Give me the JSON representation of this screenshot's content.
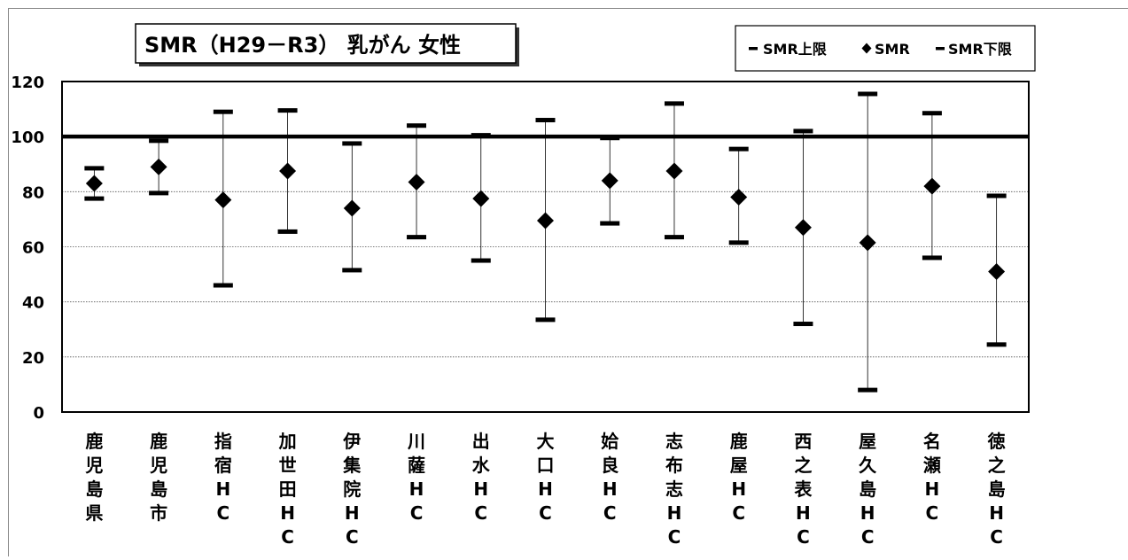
{
  "chart_data": {
    "type": "scatter",
    "title": "SMR（H29－R3） 乳がん 女性",
    "legend": {
      "placement": "top-right",
      "items": [
        {
          "marker": "dash",
          "label": "SMR上限"
        },
        {
          "marker": "diamond",
          "label": "SMR"
        },
        {
          "marker": "dash",
          "label": "SMR下限"
        }
      ]
    },
    "ylim": [
      0,
      120
    ],
    "yticks": [
      "0",
      "20",
      "40",
      "60",
      "80",
      "100",
      "120"
    ],
    "reference_line": 100,
    "grid": "horizontal dotted",
    "categories": [
      [
        "鹿",
        "児",
        "島",
        "県"
      ],
      [
        "鹿",
        "児",
        "島",
        "市"
      ],
      [
        "指",
        "宿",
        "H",
        "C"
      ],
      [
        "加",
        "世",
        "田",
        "H",
        "C"
      ],
      [
        "伊",
        "集",
        "院",
        "H",
        "C"
      ],
      [
        "川",
        "薩",
        "H",
        "C"
      ],
      [
        "出",
        "水",
        "H",
        "C"
      ],
      [
        "大",
        "口",
        "H",
        "C"
      ],
      [
        "姶",
        "良",
        "H",
        "C"
      ],
      [
        "志",
        "布",
        "志",
        "H",
        "C"
      ],
      [
        "鹿",
        "屋",
        "H",
        "C"
      ],
      [
        "西",
        "之",
        "表",
        "H",
        "C"
      ],
      [
        "屋",
        "久",
        "島",
        "H",
        "C"
      ],
      [
        "名",
        "瀬",
        "H",
        "C"
      ],
      [
        "徳",
        "之",
        "島",
        "H",
        "C"
      ]
    ],
    "series": [
      {
        "name": "SMR上限",
        "values": [
          88.5,
          98.5,
          109,
          109.5,
          97.5,
          104,
          100.5,
          106,
          99.5,
          112,
          95.5,
          102,
          115.5,
          108.5,
          78.5
        ]
      },
      {
        "name": "SMR",
        "values": [
          83,
          89,
          77,
          87.5,
          74,
          83.5,
          77.5,
          69.5,
          84,
          87.5,
          78,
          67,
          61.5,
          82,
          51
        ]
      },
      {
        "name": "SMR下限",
        "values": [
          77.5,
          79.5,
          46,
          65.5,
          51.5,
          63.5,
          55,
          33.5,
          68.5,
          63.5,
          61.5,
          32,
          8,
          56,
          24.5
        ]
      }
    ]
  }
}
